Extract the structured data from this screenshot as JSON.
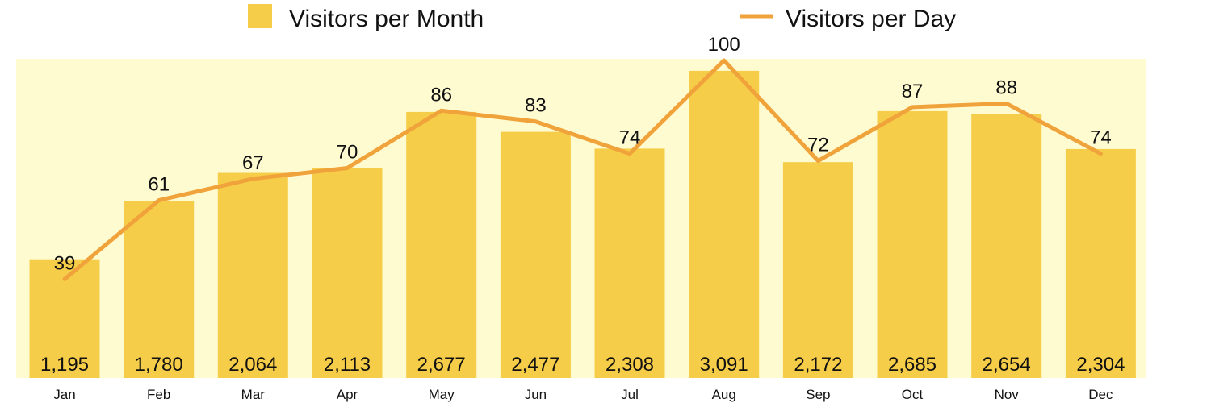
{
  "chart_data": {
    "type": "bar",
    "categories": [
      "Jan",
      "Feb",
      "Mar",
      "Apr",
      "May",
      "Jun",
      "Jul",
      "Aug",
      "Sep",
      "Oct",
      "Nov",
      "Dec"
    ],
    "series": [
      {
        "name": "Visitors per Month",
        "type": "bar",
        "values": [
          1195,
          1780,
          2064,
          2113,
          2677,
          2477,
          2308,
          3091,
          2172,
          2685,
          2654,
          2304
        ],
        "labels": [
          "1,195",
          "1,780",
          "2,064",
          "2,113",
          "2,677",
          "2,477",
          "2,308",
          "3,091",
          "2,172",
          "2,685",
          "2,654",
          "2,304"
        ],
        "color": "#f6cd48"
      },
      {
        "name": "Visitors per Day",
        "type": "line",
        "values": [
          39,
          61,
          67,
          70,
          86,
          83,
          74,
          100,
          72,
          87,
          88,
          74
        ],
        "labels": [
          "39",
          "61",
          "67",
          "70",
          "86",
          "83",
          "74",
          "100",
          "72",
          "87",
          "88",
          "74"
        ],
        "color": "#f0a33a"
      }
    ],
    "bar_ylim": [
      0,
      3300
    ],
    "line_ylim": [
      0,
      100
    ],
    "plot_background": "#fffbd1",
    "grid": false,
    "legend_position": "top"
  }
}
